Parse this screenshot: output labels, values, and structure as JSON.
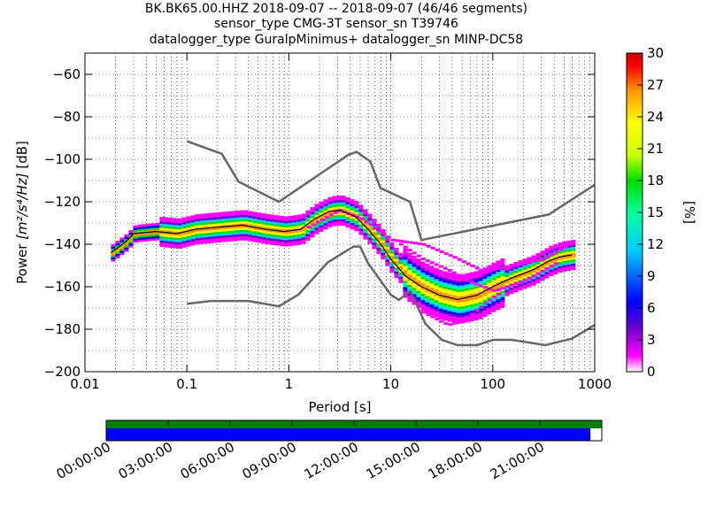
{
  "chart_data": {
    "type": "heatmap",
    "title_lines": [
      "BK.BK65.00.HHZ   2018-09-07 -- 2018-09-07  (46/46 segments)",
      "sensor_type CMG-3T sensor_sn T39746",
      "datalogger_type GuralpMinimus+ datalogger_sn MINP-DC58"
    ],
    "xlabel": "Period [s]",
    "ylabel_prefix": "Power ",
    "ylabel_math": "[m²/s⁴/Hz]",
    "ylabel_suffix": " [dB]",
    "x_scale": "log",
    "xlim": [
      0.01,
      1000
    ],
    "ylim": [
      -200,
      -50
    ],
    "x_ticks": [
      {
        "value": 0.01,
        "label": "0.01"
      },
      {
        "value": 0.1,
        "label": "0.1"
      },
      {
        "value": 1,
        "label": "1"
      },
      {
        "value": 10,
        "label": "10"
      },
      {
        "value": 100,
        "label": "100"
      },
      {
        "value": 1000,
        "label": "1000"
      }
    ],
    "y_ticks": [
      {
        "value": -60,
        "label": "−60"
      },
      {
        "value": -80,
        "label": "−80"
      },
      {
        "value": -100,
        "label": "−100"
      },
      {
        "value": -120,
        "label": "−120"
      },
      {
        "value": -140,
        "label": "−140"
      },
      {
        "value": -160,
        "label": "−160"
      },
      {
        "value": -180,
        "label": "−180"
      },
      {
        "value": -200,
        "label": "−200"
      }
    ],
    "grid": true,
    "colorbar": {
      "label": "[%]",
      "range": [
        0,
        30
      ],
      "ticks": [
        "0",
        "3",
        "6",
        "9",
        "12",
        "15",
        "18",
        "21",
        "24",
        "27",
        "30"
      ],
      "colors": [
        "#ffffff",
        "#ff00ff",
        "#6600cc",
        "#0000ff",
        "#00ccff",
        "#00ff99",
        "#00dd00",
        "#ccff00",
        "#ffff00",
        "#ff9900",
        "#ff0000",
        "#cc0000"
      ]
    },
    "noise_model_high": {
      "name": "NHNM",
      "color": "#666666",
      "points": [
        [
          0.1,
          -91.5
        ],
        [
          0.22,
          -97.4
        ],
        [
          0.32,
          -110.5
        ],
        [
          0.8,
          -120
        ],
        [
          3.8,
          -98
        ],
        [
          4.6,
          -96.5
        ],
        [
          6.3,
          -101
        ],
        [
          7.9,
          -113.5
        ],
        [
          15.4,
          -120
        ],
        [
          20,
          -138
        ],
        [
          354,
          -126
        ],
        [
          1000,
          -112
        ]
      ]
    },
    "noise_model_low": {
      "name": "NLNM",
      "color": "#666666",
      "points": [
        [
          0.1,
          -168
        ],
        [
          0.17,
          -166.7
        ],
        [
          0.4,
          -166.7
        ],
        [
          0.8,
          -169.2
        ],
        [
          1.24,
          -163.7
        ],
        [
          2.4,
          -148.6
        ],
        [
          4.3,
          -141.1
        ],
        [
          5,
          -141.1
        ],
        [
          6,
          -149
        ],
        [
          10,
          -163.8
        ],
        [
          12,
          -166.2
        ],
        [
          15.6,
          -162.1
        ],
        [
          21.9,
          -177.5
        ],
        [
          31.6,
          -185
        ],
        [
          45,
          -187.5
        ],
        [
          70,
          -187.5
        ],
        [
          101,
          -185
        ],
        [
          154,
          -185
        ],
        [
          328,
          -187.5
        ],
        [
          600,
          -184.4
        ],
        [
          1000,
          -178
        ]
      ]
    },
    "mode_line": {
      "color": "#000000",
      "points": [
        [
          0.018,
          -144
        ],
        [
          0.025,
          -139
        ],
        [
          0.03,
          -135
        ],
        [
          0.05,
          -134
        ],
        [
          0.08,
          -135
        ],
        [
          0.12,
          -133
        ],
        [
          0.2,
          -132
        ],
        [
          0.35,
          -131
        ],
        [
          0.6,
          -133
        ],
        [
          0.9,
          -134
        ],
        [
          1.3,
          -133
        ],
        [
          1.8,
          -128
        ],
        [
          2.5,
          -124.5
        ],
        [
          3.2,
          -124
        ],
        [
          4.5,
          -127
        ],
        [
          6,
          -133
        ],
        [
          8,
          -140
        ],
        [
          10,
          -147
        ],
        [
          14,
          -155
        ],
        [
          20,
          -160
        ],
        [
          30,
          -164
        ],
        [
          45,
          -166
        ],
        [
          70,
          -164
        ],
        [
          100,
          -160
        ],
        [
          150,
          -156
        ],
        [
          250,
          -152
        ],
        [
          350,
          -148
        ],
        [
          450,
          -146
        ],
        [
          600,
          -145
        ]
      ]
    },
    "density_band_extent_db": 10,
    "outlier_tracks": [
      {
        "points": [
          [
            1.5,
            -132
          ],
          [
            3,
            -124
          ],
          [
            5,
            -128
          ],
          [
            10,
            -138
          ],
          [
            20,
            -140
          ],
          [
            40,
            -146
          ],
          [
            80,
            -153
          ],
          [
            150,
            -150
          ],
          [
            300,
            -147
          ],
          [
            600,
            -139
          ]
        ]
      },
      {
        "points": [
          [
            12,
            -140
          ],
          [
            20,
            -147
          ],
          [
            35,
            -152
          ],
          [
            60,
            -158
          ],
          [
            100,
            -162
          ],
          [
            200,
            -157
          ],
          [
            400,
            -149
          ]
        ]
      },
      {
        "points": [
          [
            20,
            -172
          ],
          [
            35,
            -178
          ],
          [
            50,
            -176
          ],
          [
            80,
            -168
          ],
          [
            120,
            -162
          ]
        ]
      }
    ],
    "time_axis": {
      "labels": [
        "00:00:00",
        "03:00:00",
        "06:00:00",
        "09:00:00",
        "12:00:00",
        "15:00:00",
        "18:00:00",
        "21:00:00"
      ],
      "top_bar_color": "#008000",
      "bottom_bar_color": "#0000ff",
      "coverage_fraction": 0.977
    }
  }
}
